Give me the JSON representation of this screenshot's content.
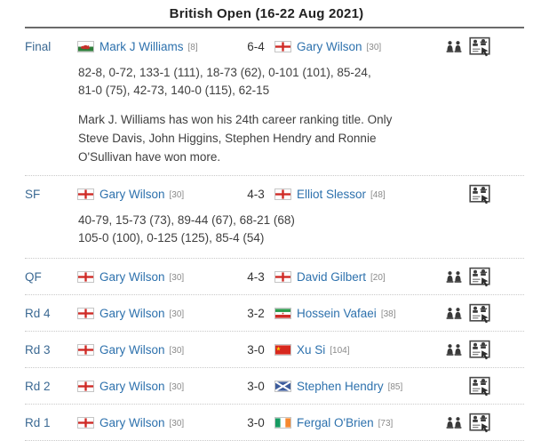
{
  "title": "British Open (16-22 Aug 2021)",
  "colors": {
    "title_text": "#222222",
    "player_link": "#2d71ad",
    "round_label": "#3b6993",
    "score_text": "#333333",
    "detail_text": "#3f3f3f",
    "separator_dotted": "#c9c9c9",
    "title_rule": "#6b6b6b"
  },
  "icon_names": {
    "head_to_head": "head-to-head-icon",
    "match_report": "match-report-icon"
  },
  "matches": [
    {
      "round": "Final",
      "p1": {
        "flag": "wales",
        "name": "Mark J Williams",
        "seed": "[8]"
      },
      "score": "6-4",
      "p2": {
        "flag": "england",
        "name": "Gary Wilson",
        "seed": "[30]"
      },
      "has_h2h": true,
      "has_report": true,
      "frames": [
        "82-8, 0-72, 133-1 (111), 18-73 (62), 0-101 (101), 85-24,",
        "81-0 (75), 42-73, 140-0 (115), 62-15"
      ],
      "note": [
        "Mark J. Williams has won his 24th career ranking title. Only",
        "Steve Davis, John Higgins, Stephen Hendry and Ronnie",
        "O'Sullivan have won more."
      ]
    },
    {
      "round": "SF",
      "p1": {
        "flag": "england",
        "name": "Gary Wilson",
        "seed": "[30]"
      },
      "score": "4-3",
      "p2": {
        "flag": "england",
        "name": "Elliot Slessor",
        "seed": "[48]"
      },
      "has_h2h": false,
      "has_report": true,
      "frames": [
        "40-79, 15-73 (73), 89-44 (67), 68-21 (68)",
        "105-0 (100), 0-125 (125), 85-4 (54)"
      ]
    },
    {
      "round": "QF",
      "p1": {
        "flag": "england",
        "name": "Gary Wilson",
        "seed": "[30]"
      },
      "score": "4-3",
      "p2": {
        "flag": "england",
        "name": "David Gilbert",
        "seed": "[20]"
      },
      "has_h2h": true,
      "has_report": true
    },
    {
      "round": "Rd 4",
      "p1": {
        "flag": "england",
        "name": "Gary Wilson",
        "seed": "[30]"
      },
      "score": "3-2",
      "p2": {
        "flag": "iran",
        "name": "Hossein Vafaei",
        "seed": "[38]"
      },
      "has_h2h": true,
      "has_report": true
    },
    {
      "round": "Rd 3",
      "p1": {
        "flag": "england",
        "name": "Gary Wilson",
        "seed": "[30]"
      },
      "score": "3-0",
      "p2": {
        "flag": "china",
        "name": "Xu Si",
        "seed": "[104]"
      },
      "has_h2h": true,
      "has_report": true
    },
    {
      "round": "Rd 2",
      "p1": {
        "flag": "england",
        "name": "Gary Wilson",
        "seed": "[30]"
      },
      "score": "3-0",
      "p2": {
        "flag": "scotland",
        "name": "Stephen Hendry",
        "seed": "[85]"
      },
      "has_h2h": false,
      "has_report": true
    },
    {
      "round": "Rd 1",
      "p1": {
        "flag": "england",
        "name": "Gary Wilson",
        "seed": "[30]"
      },
      "score": "3-0",
      "p2": {
        "flag": "ireland",
        "name": "Fergal O'Brien",
        "seed": "[73]"
      },
      "has_h2h": true,
      "has_report": true
    }
  ]
}
